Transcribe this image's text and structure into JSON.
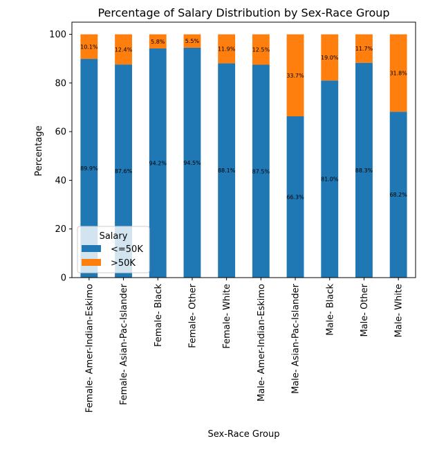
{
  "chart_data": {
    "type": "bar",
    "stacked": true,
    "title": "Percentage of Salary Distribution by Sex-Race Group",
    "xlabel": "Sex-Race Group",
    "ylabel": "Percentage",
    "ylim": [
      0,
      105
    ],
    "yticks": [
      "0",
      "20",
      "40",
      "60",
      "80",
      "100"
    ],
    "categories": [
      "Female- Amer-Indian-Eskimo",
      "Female- Asian-Pac-Islander",
      "Female- Black",
      "Female- Other",
      "Female- White",
      "Male- Amer-Indian-Eskimo",
      "Male- Asian-Pac-Islander",
      "Male- Black",
      "Male- Other",
      "Male- White"
    ],
    "series": [
      {
        "name": "<=50K",
        "color": "#1f77b4",
        "values": [
          89.9,
          87.6,
          94.2,
          94.5,
          88.1,
          87.5,
          66.3,
          81.0,
          88.3,
          68.2
        ],
        "labels": [
          "89.9%",
          "87.6%",
          "94.2%",
          "94.5%",
          "88.1%",
          "87.5%",
          "66.3%",
          "81.0%",
          "88.3%",
          "68.2%"
        ]
      },
      {
        "name": ">50K",
        "color": "#ff7f0e",
        "values": [
          10.1,
          12.4,
          5.8,
          5.5,
          11.9,
          12.5,
          33.7,
          19.0,
          11.7,
          31.8
        ],
        "labels": [
          "10.1%",
          "12.4%",
          "5.8%",
          "5.5%",
          "11.9%",
          "12.5%",
          "33.7%",
          "19.0%",
          "11.7%",
          "31.8%"
        ]
      }
    ],
    "legend": {
      "title": "Salary",
      "placement": "lower-left"
    },
    "grid": false
  }
}
